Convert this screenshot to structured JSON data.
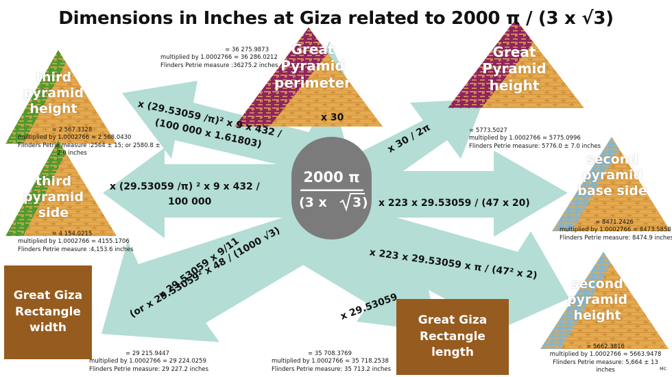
{
  "title": "Dimensions in Inches at Giza related to 2000 π / (3 x √3)",
  "center": {
    "numerator": "2000 π",
    "denominator_left": "(3 x ",
    "denominator_root": "3",
    "denominator_right": ")"
  },
  "colors": {
    "arrow": "#b3ddd5",
    "center": "#7b7b7b",
    "box": "#965b1e",
    "pyramid": "#e5a94f",
    "stripe_dark": "#8e2460",
    "stripe_green": "#4f9a2f",
    "stripe_blue": "#88b4c7"
  },
  "operations": {
    "to_gp_perimeter": "x 30",
    "to_gp_height": "x 30 / 2π",
    "to_third_height_1": "x (29.53059 /π)² x 9 x 432 /",
    "to_third_height_2": "(100 000 x 1.61803)",
    "to_third_side_1": "x (29.53059 /π) ² x 9 x 432 /",
    "to_third_side_2": "100 000",
    "to_second_base": "x 223 x 29.53059 / (47 x 20)",
    "to_second_height": "x 223 x 29.53059 x π / (47² x 2)",
    "to_rect_width_1": "x 29.53059 x 9/11",
    "to_rect_width_2": "(or x 29.53059² x 48 / (1000 √3)",
    "to_rect_length": "x 29.53059"
  },
  "pyramids": {
    "gp_perimeter": [
      "Great",
      "Pyramid",
      "perimeter"
    ],
    "gp_height": [
      "Great",
      "Pyramid",
      "height"
    ],
    "third_height": [
      "third",
      "pyramid",
      "height"
    ],
    "third_side": [
      "third",
      "pyramid",
      "side"
    ],
    "second_base": [
      "second",
      "pyramid",
      "base side"
    ],
    "second_height": [
      "second",
      "pyramid",
      "height"
    ]
  },
  "boxes": {
    "rect_width": [
      "Great Giza",
      "Rectangle",
      "width"
    ],
    "rect_length": [
      "Great Giza",
      "Rectangle",
      "length"
    ]
  },
  "notes": {
    "gp_perimeter": [
      "= 36 275.9873",
      "multiplied by 1.0002766 = 36 286.0212",
      "Flinders Petrie measure :36275.2 inches"
    ],
    "gp_height": [
      "= 5773.5027",
      "multiplied by 1.0002766 = 5775.0996",
      "Flinders Petrie measure: 5776.0 ± 7.0 inches"
    ],
    "third_height": [
      "= 2 567.3328",
      "multiplied by 1.0002766 = 2 568.0430",
      "Flinders Petrie measure :2564 ± 15; or 2580.8 ±",
      "2.0 inches"
    ],
    "third_side": [
      "= 4 154.0215",
      "multiplied by 1.0002766 = 4155.1706",
      "Flinders Petrie measure :4,153.6 inches"
    ],
    "second_base": [
      "= 8471.2426",
      "multiplied by 1.0002766 = 8473.5858",
      "Flinders Petrie measure: 8474.9 inches"
    ],
    "second_height": [
      "= 5662.3816",
      "multiplied by 1.0002766 = 5663.9478",
      "Flinders Petrie measure: 5,664 ± 13",
      "inches"
    ],
    "rect_width": [
      "= 29 215.9447",
      "multiplied by 1.0002766 = 29 224.0259",
      "Flinders Petrie measure: 29 227.2 inches"
    ],
    "rect_length": [
      "= 35 708.3769",
      "multiplied by 1.0002766 = 35 718.2538",
      "Flinders Petrie measure: 35 713.2 inches"
    ]
  },
  "signature": "MC"
}
